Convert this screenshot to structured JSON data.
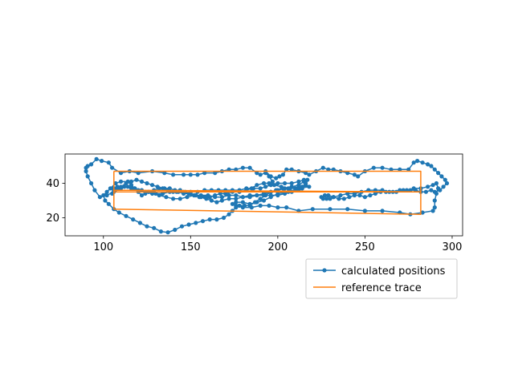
{
  "chart_data": {
    "type": "line",
    "title": "",
    "xlabel": "",
    "ylabel": "",
    "xlim": [
      78,
      306
    ],
    "ylim": [
      9.5,
      57
    ],
    "x_ticks": [
      100,
      150,
      200,
      250,
      300
    ],
    "y_ticks": [
      20,
      40
    ],
    "grid": false,
    "legend_placement": "lower-right, below plot",
    "series": [
      {
        "name": "calculated positions",
        "color": "#1f77b4",
        "marker": "circle",
        "points": [
          [
            90,
            49
          ],
          [
            93,
            51
          ],
          [
            96,
            54
          ],
          [
            99,
            53
          ],
          [
            103,
            52
          ],
          [
            105,
            49
          ],
          [
            110,
            46
          ],
          [
            115,
            47
          ],
          [
            120,
            46
          ],
          [
            128,
            47
          ],
          [
            135,
            46
          ],
          [
            140,
            45
          ],
          [
            146,
            45
          ],
          [
            150,
            45
          ],
          [
            154,
            45
          ],
          [
            158,
            46
          ],
          [
            164,
            46
          ],
          [
            168,
            47
          ],
          [
            172,
            48
          ],
          [
            176,
            48
          ],
          [
            180,
            49
          ],
          [
            184,
            49
          ],
          [
            188,
            46
          ],
          [
            190,
            45
          ],
          [
            193,
            46
          ],
          [
            195,
            44
          ],
          [
            197,
            41
          ],
          [
            193,
            47
          ],
          [
            196,
            44
          ],
          [
            199,
            43
          ],
          [
            201,
            44
          ],
          [
            203,
            45
          ],
          [
            205,
            48
          ],
          [
            208,
            48
          ],
          [
            212,
            47
          ],
          [
            216,
            46
          ],
          [
            218,
            45
          ],
          [
            222,
            47
          ],
          [
            226,
            49
          ],
          [
            229,
            48
          ],
          [
            232,
            48
          ],
          [
            236,
            47
          ],
          [
            240,
            46
          ],
          [
            244,
            45
          ],
          [
            246,
            44
          ],
          [
            250,
            47
          ],
          [
            255,
            49
          ],
          [
            260,
            49
          ],
          [
            265,
            48
          ],
          [
            270,
            48
          ],
          [
            275,
            48
          ],
          [
            278,
            52
          ],
          [
            280,
            53
          ],
          [
            283,
            52
          ],
          [
            286,
            51
          ],
          [
            288,
            50
          ],
          [
            290,
            48
          ],
          [
            292,
            46
          ],
          [
            294,
            44
          ],
          [
            296,
            42
          ],
          [
            297,
            40
          ],
          [
            295,
            38
          ],
          [
            293,
            36
          ],
          [
            290,
            35
          ],
          [
            288,
            36
          ],
          [
            285,
            35
          ],
          [
            282,
            35
          ],
          [
            279,
            36
          ],
          [
            276,
            36
          ],
          [
            272,
            36
          ],
          [
            268,
            35
          ],
          [
            264,
            35
          ],
          [
            260,
            36
          ],
          [
            256,
            36
          ],
          [
            252,
            36
          ],
          [
            248,
            35
          ],
          [
            244,
            34
          ],
          [
            240,
            34
          ],
          [
            236,
            33
          ],
          [
            232,
            32
          ],
          [
            230,
            31
          ],
          [
            228,
            31
          ],
          [
            226,
            31
          ],
          [
            225,
            32
          ],
          [
            227,
            33
          ],
          [
            229,
            33
          ],
          [
            232,
            32
          ],
          [
            235,
            31
          ],
          [
            238,
            31
          ],
          [
            241,
            32
          ],
          [
            244,
            33
          ],
          [
            247,
            33
          ],
          [
            250,
            32
          ],
          [
            253,
            33
          ],
          [
            256,
            34
          ],
          [
            259,
            35
          ],
          [
            262,
            35
          ],
          [
            266,
            35
          ],
          [
            270,
            36
          ],
          [
            274,
            36
          ],
          [
            278,
            37
          ],
          [
            282,
            37
          ],
          [
            286,
            38
          ],
          [
            289,
            39
          ],
          [
            291,
            40
          ],
          [
            292,
            37
          ],
          [
            291,
            34
          ],
          [
            290,
            30
          ],
          [
            290,
            26
          ],
          [
            289,
            24
          ],
          [
            283,
            23
          ],
          [
            276,
            22
          ],
          [
            270,
            23
          ],
          [
            260,
            24
          ],
          [
            250,
            24
          ],
          [
            240,
            25
          ],
          [
            230,
            25
          ],
          [
            220,
            25
          ],
          [
            212,
            24
          ],
          [
            205,
            26
          ],
          [
            200,
            26
          ],
          [
            195,
            27
          ],
          [
            190,
            27
          ],
          [
            185,
            26
          ],
          [
            180,
            26
          ],
          [
            176,
            27
          ],
          [
            174,
            28
          ],
          [
            176,
            29
          ],
          [
            180,
            29
          ],
          [
            184,
            28
          ],
          [
            188,
            29
          ],
          [
            192,
            30
          ],
          [
            196,
            32
          ],
          [
            200,
            34
          ],
          [
            206,
            35
          ],
          [
            212,
            37
          ],
          [
            218,
            38
          ],
          [
            214,
            38
          ],
          [
            210,
            37
          ],
          [
            206,
            37
          ],
          [
            202,
            38
          ],
          [
            198,
            39
          ],
          [
            195,
            40
          ],
          [
            192,
            40
          ],
          [
            188,
            39
          ],
          [
            185,
            37
          ],
          [
            182,
            36
          ],
          [
            178,
            35
          ],
          [
            174,
            35
          ],
          [
            170,
            34
          ],
          [
            167,
            34
          ],
          [
            164,
            33
          ],
          [
            161,
            32
          ],
          [
            158,
            32
          ],
          [
            155,
            32
          ],
          [
            152,
            33
          ],
          [
            149,
            34
          ],
          [
            146,
            34
          ],
          [
            143,
            35
          ],
          [
            140,
            35
          ],
          [
            137,
            36
          ],
          [
            134,
            37
          ],
          [
            131,
            38
          ],
          [
            128,
            39
          ],
          [
            125,
            40
          ],
          [
            122,
            41
          ],
          [
            119,
            42
          ],
          [
            116,
            41
          ],
          [
            113,
            40
          ],
          [
            110,
            38
          ],
          [
            108,
            37
          ],
          [
            106,
            36
          ],
          [
            105,
            34
          ],
          [
            106,
            37
          ],
          [
            108,
            38
          ],
          [
            112,
            38
          ],
          [
            116,
            37
          ],
          [
            120,
            36
          ],
          [
            124,
            35
          ],
          [
            128,
            34
          ],
          [
            132,
            33
          ],
          [
            136,
            32
          ],
          [
            140,
            31
          ],
          [
            144,
            31
          ],
          [
            148,
            32
          ],
          [
            152,
            33
          ],
          [
            156,
            33
          ],
          [
            160,
            33
          ],
          [
            164,
            32
          ],
          [
            168,
            32
          ],
          [
            172,
            33
          ],
          [
            176,
            33
          ],
          [
            180,
            32
          ],
          [
            184,
            32
          ],
          [
            188,
            33
          ],
          [
            192,
            34
          ],
          [
            196,
            35
          ],
          [
            200,
            36
          ],
          [
            204,
            37
          ],
          [
            208,
            38
          ],
          [
            212,
            39
          ],
          [
            215,
            41
          ],
          [
            217,
            42
          ],
          [
            216,
            39
          ],
          [
            214,
            37
          ],
          [
            212,
            36
          ],
          [
            208,
            35
          ],
          [
            204,
            34
          ],
          [
            200,
            33
          ],
          [
            196,
            33
          ],
          [
            192,
            33
          ],
          [
            188,
            33
          ],
          [
            184,
            33
          ],
          [
            180,
            32
          ],
          [
            176,
            31
          ],
          [
            172,
            31
          ],
          [
            168,
            30
          ],
          [
            165,
            29
          ],
          [
            162,
            30
          ],
          [
            159,
            31
          ],
          [
            156,
            32
          ],
          [
            153,
            33
          ],
          [
            150,
            34
          ],
          [
            147,
            35
          ],
          [
            144,
            36
          ],
          [
            141,
            36
          ],
          [
            138,
            37
          ],
          [
            135,
            37
          ],
          [
            132,
            37
          ],
          [
            129,
            36
          ],
          [
            126,
            35
          ],
          [
            124,
            34
          ],
          [
            122,
            33
          ],
          [
            120,
            35
          ],
          [
            118,
            37
          ],
          [
            116,
            39
          ],
          [
            114,
            41
          ],
          [
            110,
            41
          ],
          [
            107,
            40
          ],
          [
            104,
            37
          ],
          [
            102,
            35
          ],
          [
            100,
            33
          ],
          [
            101,
            30
          ],
          [
            103,
            28
          ],
          [
            106,
            25
          ],
          [
            109,
            23
          ],
          [
            113,
            21
          ],
          [
            117,
            19
          ],
          [
            121,
            17
          ],
          [
            125,
            15
          ],
          [
            129,
            14
          ],
          [
            133,
            12
          ],
          [
            137,
            11.5
          ],
          [
            141,
            13
          ],
          [
            145,
            15
          ],
          [
            149,
            16
          ],
          [
            153,
            17
          ],
          [
            157,
            18
          ],
          [
            161,
            19
          ],
          [
            165,
            19
          ],
          [
            169,
            20
          ],
          [
            172,
            22
          ],
          [
            174,
            24
          ],
          [
            176,
            26
          ],
          [
            178,
            27
          ],
          [
            181,
            27
          ],
          [
            184,
            27
          ],
          [
            187,
            29
          ],
          [
            190,
            31
          ],
          [
            193,
            33
          ],
          [
            196,
            35
          ],
          [
            199,
            36
          ],
          [
            203,
            37
          ],
          [
            207,
            37
          ],
          [
            211,
            37
          ],
          [
            214,
            38
          ],
          [
            216,
            40
          ],
          [
            215,
            42
          ],
          [
            212,
            41
          ],
          [
            208,
            40
          ],
          [
            204,
            40
          ],
          [
            200,
            40
          ],
          [
            196,
            39
          ],
          [
            193,
            38
          ],
          [
            190,
            37
          ],
          [
            186,
            37
          ],
          [
            182,
            37
          ],
          [
            178,
            36
          ],
          [
            174,
            36
          ],
          [
            170,
            36
          ],
          [
            166,
            36
          ],
          [
            162,
            36
          ],
          [
            158,
            36
          ],
          [
            154,
            35
          ],
          [
            150,
            35
          ],
          [
            146,
            35
          ],
          [
            142,
            35
          ],
          [
            138,
            35
          ],
          [
            134,
            34
          ],
          [
            130,
            34
          ],
          [
            126,
            35
          ],
          [
            122,
            36
          ],
          [
            118,
            37
          ],
          [
            114,
            38
          ],
          [
            110,
            37
          ],
          [
            106,
            35
          ],
          [
            102,
            33
          ],
          [
            98,
            32
          ],
          [
            95,
            36
          ],
          [
            93,
            40
          ],
          [
            91,
            44
          ],
          [
            90,
            47
          ],
          [
            91,
            50
          ]
        ]
      },
      {
        "name": "reference trace",
        "color": "#ff7f0e",
        "marker": "none",
        "points": [
          [
            106,
            47
          ],
          [
            282,
            47
          ],
          [
            282,
            35
          ],
          [
            106,
            36
          ],
          [
            106,
            25
          ],
          [
            282,
            22
          ],
          [
            282,
            35
          ],
          [
            106,
            35
          ],
          [
            106,
            47
          ]
        ]
      }
    ]
  }
}
